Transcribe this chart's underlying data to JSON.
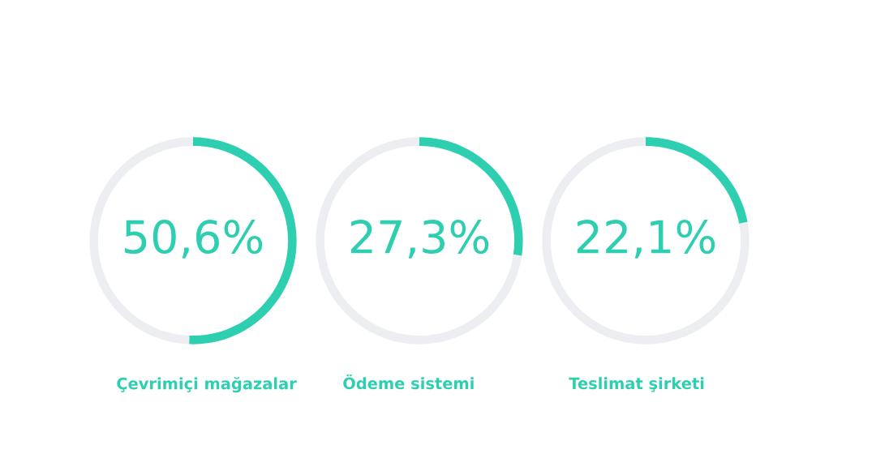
{
  "chart_data": [
    {
      "type": "donut",
      "title": "Çevrimiçi mağazalar",
      "categories": [
        null,
        null
      ],
      "values": [
        50.6,
        49.4
      ],
      "colors": [
        "#2ecfb1",
        "#eceef2"
      ],
      "annotations": [
        "50,6%"
      ]
    },
    {
      "type": "donut",
      "title": "Ödeme sistemi",
      "categories": [
        null,
        null
      ],
      "values": [
        27.3,
        72.7
      ],
      "colors": [
        "#2ecfb1",
        "#eceef2"
      ],
      "annotations": [
        "27,3%"
      ]
    },
    {
      "type": "donut",
      "title": "Teslimat şirketi",
      "categories": [
        null,
        null
      ],
      "values": [
        22.1,
        77.9
      ],
      "colors": [
        "#2ecfb1",
        "#eceef2"
      ],
      "annotations": [
        "22,1%"
      ]
    }
  ]
}
